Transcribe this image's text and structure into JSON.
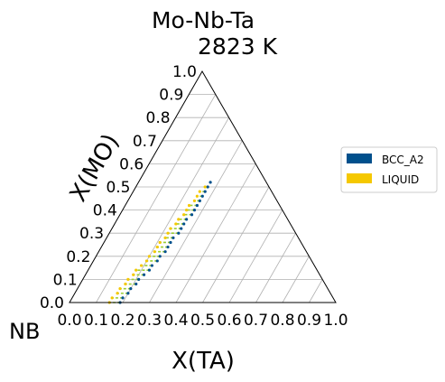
{
  "chart_data": {
    "type": "scatter",
    "projection": "ternary",
    "title": "Mo-Nb-Ta",
    "subtitle": "2823  K",
    "left_axis_label": "X(MO)",
    "bottom_axis_label": "X(TA)",
    "corner_label": "NB",
    "left_ticks": [
      "0.0",
      "0.1",
      "0.2",
      "0.3",
      "0.4",
      "0.5",
      "0.6",
      "0.7",
      "0.8",
      "0.9",
      "1.0"
    ],
    "bottom_ticks": [
      "0.0",
      "0.1",
      "0.2",
      "0.3",
      "0.4",
      "0.5",
      "0.6",
      "0.7",
      "0.8",
      "0.9",
      "1.0"
    ],
    "axis_range": [
      0,
      1
    ],
    "grid": true,
    "legend_position": "right",
    "series": [
      {
        "name": "BCC_A2",
        "color": "#00508c",
        "marker": "point",
        "points": [
          [
            0.19,
            0.0
          ],
          [
            0.19,
            0.02
          ],
          [
            0.2,
            0.04
          ],
          [
            0.2,
            0.06
          ],
          [
            0.21,
            0.08
          ],
          [
            0.21,
            0.1
          ],
          [
            0.22,
            0.12
          ],
          [
            0.23,
            0.14
          ],
          [
            0.23,
            0.16
          ],
          [
            0.24,
            0.18
          ],
          [
            0.24,
            0.2
          ],
          [
            0.25,
            0.22
          ],
          [
            0.25,
            0.24
          ],
          [
            0.25,
            0.26
          ],
          [
            0.25,
            0.28
          ],
          [
            0.26,
            0.3
          ],
          [
            0.26,
            0.32
          ],
          [
            0.26,
            0.34
          ],
          [
            0.26,
            0.36
          ],
          [
            0.27,
            0.38
          ],
          [
            0.27,
            0.4
          ],
          [
            0.27,
            0.42
          ],
          [
            0.27,
            0.44
          ],
          [
            0.27,
            0.46
          ],
          [
            0.27,
            0.48
          ],
          [
            0.27,
            0.5
          ],
          [
            0.27,
            0.52
          ]
        ]
      },
      {
        "name": "LIQUID",
        "color": "#f5c800",
        "marker": "point",
        "points": [
          [
            0.15,
            0.0
          ],
          [
            0.15,
            0.02
          ],
          [
            0.16,
            0.04
          ],
          [
            0.16,
            0.06
          ],
          [
            0.17,
            0.08
          ],
          [
            0.17,
            0.1
          ],
          [
            0.18,
            0.12
          ],
          [
            0.18,
            0.14
          ],
          [
            0.19,
            0.16
          ],
          [
            0.2,
            0.18
          ],
          [
            0.2,
            0.2
          ],
          [
            0.21,
            0.22
          ],
          [
            0.21,
            0.24
          ],
          [
            0.21,
            0.26
          ],
          [
            0.22,
            0.28
          ],
          [
            0.22,
            0.3
          ],
          [
            0.22,
            0.32
          ],
          [
            0.23,
            0.34
          ],
          [
            0.23,
            0.36
          ],
          [
            0.24,
            0.38
          ],
          [
            0.24,
            0.4
          ],
          [
            0.24,
            0.42
          ],
          [
            0.25,
            0.44
          ],
          [
            0.25,
            0.46
          ],
          [
            0.25,
            0.48
          ],
          [
            0.26,
            0.5
          ]
        ]
      }
    ],
    "tie_line_color": "#9acd32"
  }
}
